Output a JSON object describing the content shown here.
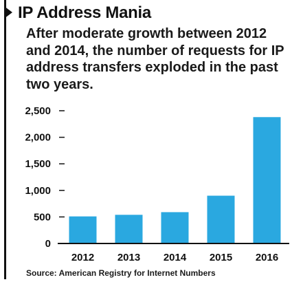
{
  "title": "IP Address Mania",
  "subtitle": "After moderate growth between 2012 and 2014, the number of requests for IP address transfers exploded in the past two years.",
  "source": "Source: American Registry for Internet Numbers",
  "colors": {
    "bar": "#2aa8e0",
    "text": "#111111",
    "rule": "#111111"
  },
  "chart_data": {
    "type": "bar",
    "categories": [
      "2012",
      "2013",
      "2014",
      "2015",
      "2016"
    ],
    "values": [
      510,
      540,
      590,
      900,
      2380
    ],
    "ylim": [
      0,
      2500
    ],
    "yticks": [
      0,
      500,
      1000,
      1500,
      2000,
      2500
    ],
    "ytick_labels": [
      "0",
      "500",
      "1,000",
      "1,500",
      "2,000",
      "2,500"
    ],
    "xlabel": "",
    "ylabel": "",
    "grid": false,
    "legend": "none"
  }
}
